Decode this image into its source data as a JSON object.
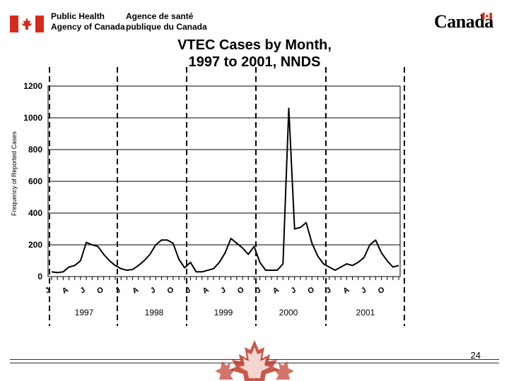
{
  "header": {
    "org_en": "Public Health\nAgency of Canada",
    "org_fr": "Agence de santé\npublique du Canada",
    "wordmark": "Canada",
    "flag_icon": "canada-flag-icon"
  },
  "colors": {
    "flag_red": "#d52b1e",
    "line": "#000000",
    "maple_red": "#c0392b"
  },
  "chart_data": {
    "type": "line",
    "title": [
      "VTEC Cases by Month,",
      "1997 to 2001, NNDS"
    ],
    "ylabel": "Frequency of Reported Cases",
    "xlabel": "",
    "ylim": [
      0,
      1200
    ],
    "yticks": [
      0,
      200,
      400,
      600,
      800,
      1000,
      1200
    ],
    "grid": "horizontal",
    "month_ticks": [
      "J",
      "A",
      "J",
      "O",
      "J",
      "A",
      "J",
      "O",
      "J",
      "A",
      "J",
      "O",
      "J",
      "A",
      "J",
      "O",
      "J",
      "A",
      "J",
      "O"
    ],
    "years": [
      "1997",
      "1998",
      "1999",
      "2000",
      "2001"
    ],
    "series": [
      {
        "values": [
          30,
          25,
          30,
          60,
          70,
          100,
          215,
          200,
          190,
          140,
          100,
          70,
          50,
          40,
          45,
          70,
          100,
          140,
          200,
          230,
          230,
          210,
          110,
          55,
          90,
          30,
          30,
          40,
          50,
          90,
          150,
          240,
          210,
          180,
          140,
          190,
          90,
          40,
          40,
          40,
          80,
          1060,
          300,
          310,
          340,
          210,
          130,
          80,
          60,
          40,
          60,
          80,
          70,
          90,
          120,
          200,
          230,
          150,
          100,
          60,
          70
        ]
      }
    ]
  },
  "footer": {
    "page_number": "24",
    "maple_icon": "maple-leaf-icon"
  }
}
